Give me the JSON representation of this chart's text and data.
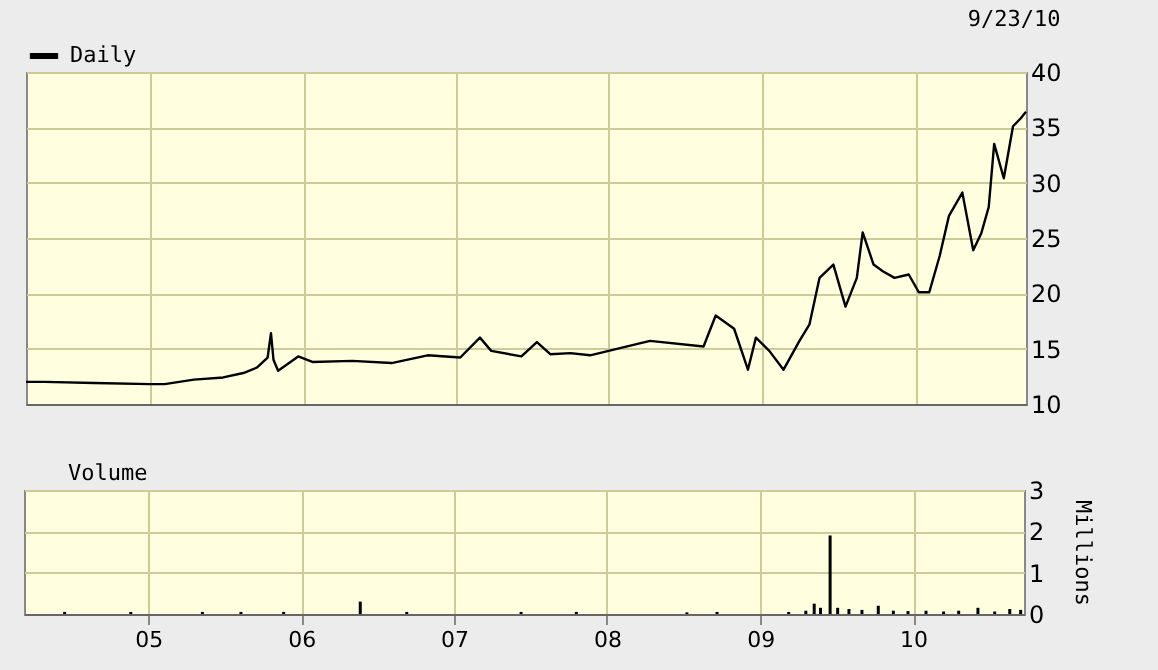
{
  "chart_data": [
    {
      "type": "line",
      "x": [
        "2004-03-10",
        "2004-04-23",
        "2004-08-20",
        "2005-01-01",
        "2005-02-04",
        "2005-04-15",
        "2005-06-24",
        "2005-08-11",
        "2005-09-13",
        "2005-10-08",
        "2005-10-16",
        "2005-10-22",
        "2005-11-02",
        "2005-12-20",
        "2006-01-23",
        "2006-04-28",
        "2006-07-31",
        "2006-10-25",
        "2007-01-11",
        "2007-02-27",
        "2007-03-26",
        "2007-06-06",
        "2007-07-13",
        "2007-08-14",
        "2007-10-01",
        "2007-11-17",
        "2008-04-08",
        "2008-08-14",
        "2008-09-12",
        "2008-10-26",
        "2008-11-28",
        "2008-12-17",
        "2009-01-18",
        "2009-02-21",
        "2009-03-31",
        "2009-04-24",
        "2009-05-18",
        "2009-06-20",
        "2009-07-19",
        "2009-08-15",
        "2009-08-29",
        "2009-09-24",
        "2009-10-16",
        "2009-11-13",
        "2009-12-17",
        "2010-01-10",
        "2010-02-04",
        "2010-03-01",
        "2010-03-23",
        "2010-04-24",
        "2010-05-20",
        "2010-06-08",
        "2010-06-26",
        "2010-07-09",
        "2010-08-01",
        "2010-08-23",
        "2010-09-10",
        "2010-09-23"
      ],
      "series": [
        {
          "name": "Daily",
          "color": "#000000",
          "values": [
            12.0,
            12.0,
            11.9,
            11.8,
            11.8,
            12.2,
            12.4,
            12.8,
            13.3,
            14.2,
            16.4,
            14.0,
            13.0,
            14.3,
            13.8,
            13.9,
            13.7,
            14.4,
            14.2,
            16.0,
            14.8,
            14.3,
            15.6,
            14.5,
            14.6,
            14.4,
            15.7,
            15.2,
            18.0,
            16.8,
            13.1,
            16.0,
            14.8,
            13.1,
            15.7,
            17.2,
            21.4,
            22.6,
            18.8,
            21.4,
            25.5,
            22.6,
            22.0,
            21.4,
            21.7,
            20.1,
            20.1,
            23.4,
            27.0,
            29.1,
            23.9,
            25.4,
            27.8,
            33.5,
            30.4,
            35.1,
            35.8,
            36.4
          ]
        }
      ],
      "xlim": [
        "2004-03-10",
        "2010-09-23"
      ],
      "xticks": [
        {
          "value": "2005-01-01",
          "label": null
        },
        {
          "value": "2006-01-01",
          "label": null
        },
        {
          "value": "2007-01-01",
          "label": null
        },
        {
          "value": "2008-01-01",
          "label": null
        },
        {
          "value": "2009-01-01",
          "label": null
        },
        {
          "value": "2010-01-01",
          "label": null
        }
      ],
      "ylim": [
        10,
        40
      ],
      "yticks": [
        10,
        15,
        20,
        25,
        30,
        35,
        40
      ],
      "grid": true,
      "legend": "top left",
      "tick_labels": "y",
      "annotations": [
        "9/23/10"
      ]
    },
    {
      "type": "bar",
      "x": [
        "2004-06-15",
        "2004-11-20",
        "2005-05-10",
        "2005-08-10",
        "2005-11-20",
        "2006-05-22",
        "2006-09-10",
        "2007-06-10",
        "2007-10-20",
        "2008-07-10",
        "2008-09-20",
        "2009-03-10",
        "2009-04-20",
        "2009-05-10",
        "2009-05-25",
        "2009-06-17",
        "2009-07-05",
        "2009-08-01",
        "2009-09-01",
        "2009-10-10",
        "2009-11-15",
        "2009-12-20",
        "2010-02-01",
        "2010-03-15",
        "2010-04-20",
        "2010-06-05",
        "2010-07-15",
        "2010-08-20",
        "2010-09-15"
      ],
      "series": [
        {
          "name": "Volume",
          "color": "#000000",
          "values": [
            0.05,
            0.05,
            0.05,
            0.05,
            0.05,
            0.3,
            0.05,
            0.05,
            0.05,
            0.04,
            0.05,
            0.05,
            0.08,
            0.25,
            0.15,
            1.9,
            0.15,
            0.12,
            0.1,
            0.2,
            0.08,
            0.07,
            0.08,
            0.06,
            0.08,
            0.15,
            0.06,
            0.12,
            0.1
          ]
        }
      ],
      "xlim": [
        "2004-03-10",
        "2010-09-23"
      ],
      "xticks": [
        {
          "value": "2005-01-01",
          "label": "05"
        },
        {
          "value": "2006-01-01",
          "label": "06"
        },
        {
          "value": "2007-01-01",
          "label": "07"
        },
        {
          "value": "2008-01-01",
          "label": "08"
        },
        {
          "value": "2009-01-01",
          "label": "09"
        },
        {
          "value": "2010-01-01",
          "label": "10"
        }
      ],
      "ylim": [
        0,
        3
      ],
      "yticks": [
        0,
        1,
        2,
        3
      ],
      "ylabel": "Millions",
      "grid": true,
      "legend": "top left"
    }
  ]
}
